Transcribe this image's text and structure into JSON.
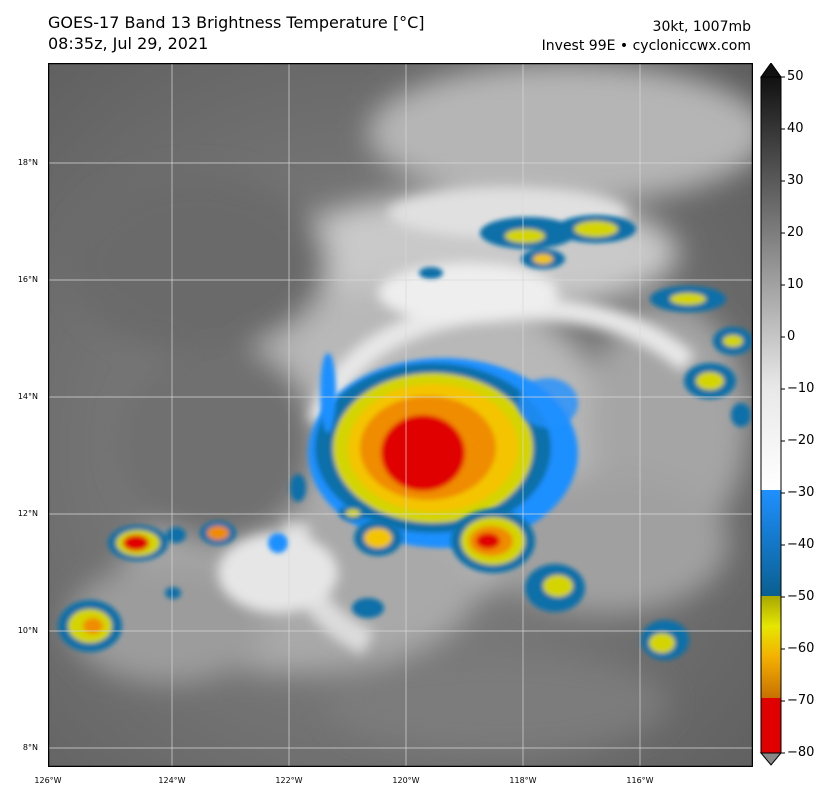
{
  "header": {
    "title_line1": "GOES-17 Band 13 Brightness Temperature [°C]",
    "title_line2": "08:35z, Jul 29, 2021",
    "info_line1": "30kt, 1007mb",
    "info_line2": "Invest 99E • cycloniccwx.com"
  },
  "map": {
    "lat_labels": [
      "18°N",
      "16°N",
      "14°N",
      "12°N",
      "10°N",
      "8°N"
    ],
    "lon_labels": [
      "126°W",
      "124°W",
      "122°W",
      "120°W",
      "118°W",
      "116°W"
    ],
    "features": [
      {
        "name": "main-convective-core",
        "lon": -120.0,
        "lat": 13.1,
        "min_temp_c": -80
      },
      {
        "name": "southeast-convective-cluster",
        "lon": -118.5,
        "lat": 11.7,
        "min_temp_c": -75
      },
      {
        "name": "west-convective-cluster",
        "lon": -124.8,
        "lat": 11.5,
        "min_temp_c": -75
      },
      {
        "name": "southwest-convective-cluster",
        "lon": -125.3,
        "lat": 10.0,
        "min_temp_c": -65
      },
      {
        "name": "south-convective-cluster",
        "lon": -117.3,
        "lat": 10.7,
        "min_temp_c": -60
      },
      {
        "name": "southeast-small-cluster",
        "lon": -115.6,
        "lat": 9.8,
        "min_temp_c": -60
      },
      {
        "name": "northeast-convective-band",
        "lon": -117.5,
        "lat": 16.9,
        "min_temp_c": -60
      },
      {
        "name": "east-convective-cells",
        "lon": -114.7,
        "lat": 14.2,
        "min_temp_c": -65
      }
    ]
  },
  "colorbar": {
    "ticks": [
      "50",
      "40",
      "30",
      "20",
      "10",
      "0",
      "−10",
      "−20",
      "−30",
      "−40",
      "−50",
      "−60",
      "−70",
      "−80"
    ],
    "range_c": [
      -80,
      50
    ],
    "colors": {
      "warm": "#111111",
      "mid": "#9a9a9a",
      "white": "#ffffff",
      "cyan": "#1e90ff",
      "blue": "#0a6fa8",
      "yellow": "#d4d400",
      "orange": "#f08c00",
      "red": "#e00000"
    }
  }
}
